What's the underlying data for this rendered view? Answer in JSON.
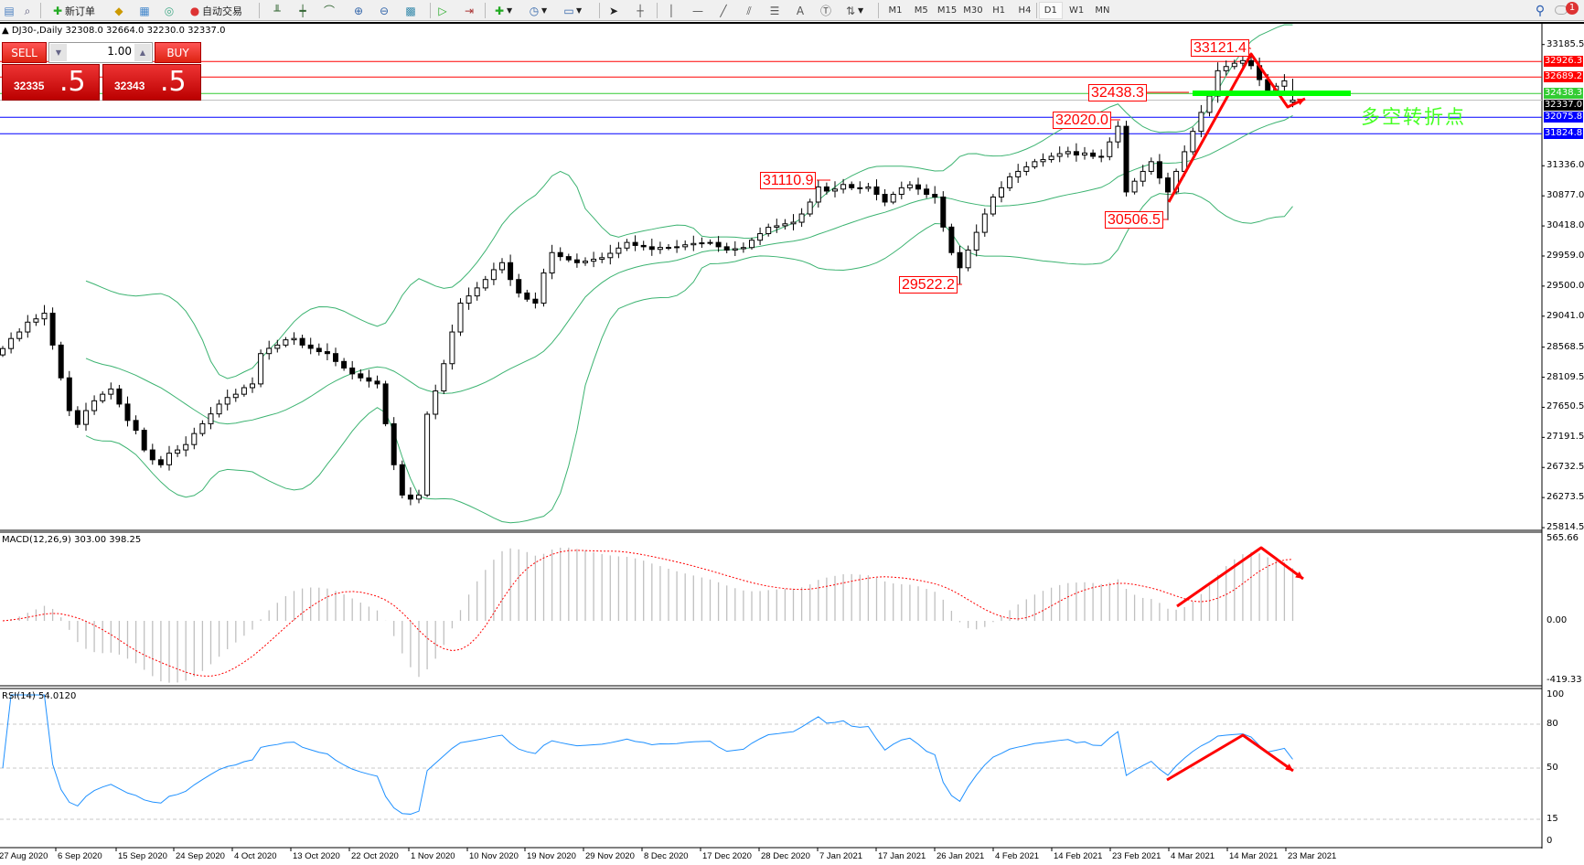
{
  "toolbar": {
    "new_order": "新订单",
    "auto_trading": "自动交易",
    "periods": [
      "M1",
      "M5",
      "M15",
      "M30",
      "H1",
      "H4",
      "D1",
      "W1",
      "MN"
    ],
    "active_period": "D1",
    "notification_count": "1"
  },
  "chart": {
    "title": "DJ30-,Daily  32308.0 32664.0 32230.0 32337.0",
    "symbol": "DJ30-",
    "timeframe": "Daily"
  },
  "trade_panel": {
    "sell_label": "SELL",
    "buy_label": "BUY",
    "lot": "1.00",
    "sell_price_main": "32335",
    "sell_price_big": ".5",
    "buy_price_main": "32343",
    "buy_price_big": ".5"
  },
  "price_axis": [
    "33185.5",
    "31336.0",
    "30877.0",
    "30418.0",
    "29959.0",
    "29500.0",
    "29041.0",
    "28568.5",
    "28109.5",
    "27650.5",
    "27191.5",
    "26732.5",
    "26273.5",
    "25814.5"
  ],
  "price_axis_values": [
    33185.5,
    31336.0,
    30877.0,
    30418.0,
    29959.0,
    29500.0,
    29041.0,
    28568.5,
    28109.5,
    27650.5,
    27191.5,
    26732.5,
    26273.5,
    25814.5
  ],
  "levels": [
    {
      "label": "32926.3",
      "value": 32926.3,
      "color": "#ff0000"
    },
    {
      "label": "32689.2",
      "value": 32689.2,
      "color": "#ff0000"
    },
    {
      "label": "32438.3",
      "value": 32438.3,
      "color": "#33cc33"
    },
    {
      "label": "32337.0",
      "value": 32337.0,
      "color": "#000000",
      "line": "#c0c0c0"
    },
    {
      "label": "32075.8",
      "value": 32075.8,
      "color": "#0000ff"
    },
    {
      "label": "31824.8",
      "value": 31824.8,
      "color": "#0000ff"
    }
  ],
  "annotations": {
    "peak": "33121.4",
    "green_level": "32438.3",
    "high_feb": "32020.0",
    "high_jan": "31110.9",
    "low_mar": "30506.5",
    "low_jan": "29522.2",
    "turning_point": "多空转折点"
  },
  "macd": {
    "label": "MACD(12,26,9) 303.00 398.25",
    "axis": [
      "565.66",
      "0.00",
      "-419.33"
    ],
    "max": 565.66,
    "min": -419.33
  },
  "rsi": {
    "label": "RSI(14) 54.0120",
    "axis": [
      "100",
      "80",
      "50",
      "15",
      "0"
    ],
    "levels": [
      80,
      50,
      15
    ]
  },
  "dates": [
    "27 Aug 2020",
    "6 Sep 2020",
    "15 Sep 2020",
    "24 Sep 2020",
    "4 Oct 2020",
    "13 Oct 2020",
    "22 Oct 2020",
    "1 Nov 2020",
    "10 Nov 2020",
    "19 Nov 2020",
    "29 Nov 2020",
    "8 Dec 2020",
    "17 Dec 2020",
    "28 Dec 2020",
    "7 Jan 2021",
    "17 Jan 2021",
    "26 Jan 2021",
    "4 Feb 2021",
    "14 Feb 2021",
    "23 Feb 2021",
    "4 Mar 2021",
    "14 Mar 2021",
    "23 Mar 2021"
  ],
  "colors": {
    "bands": "#3cb371",
    "macd_hist": "#c0c0c0",
    "macd_signal": "#ff0000",
    "rsi": "#1e90ff",
    "arrow": "#ff0000"
  },
  "chart_data": {
    "type": "candlestick",
    "indicators": [
      "Bollinger Bands",
      "MACD(12,26,9)",
      "RSI(14)"
    ],
    "closes": [
      28547,
      28700,
      28800,
      28950,
      29000,
      29086,
      28600,
      28100,
      27600,
      27390,
      27600,
      27750,
      27850,
      27930,
      27700,
      27450,
      27300,
      27000,
      26850,
      26774,
      26950,
      27000,
      27082,
      27250,
      27400,
      27550,
      27699,
      27800,
      27850,
      27950,
      28007,
      28470,
      28550,
      28600,
      28680,
      28701,
      28600,
      28550,
      28500,
      28470,
      28350,
      28250,
      28161,
      28100,
      28050,
      28007,
      27400,
      26774,
      26312,
      26250,
      26312,
      27545,
      27900,
      28316,
      28800,
      29240,
      29350,
      29472,
      29600,
      29750,
      29857,
      29600,
      29395,
      29300,
      29240,
      29700,
      30011,
      29950,
      29900,
      29857,
      29880,
      29910,
      29934,
      30000,
      30080,
      30166,
      30120,
      30100,
      30060,
      30090,
      30088,
      30100,
      30130,
      30150,
      30160,
      30166,
      30100,
      30050,
      30070,
      30088,
      30200,
      30300,
      30397,
      30420,
      30450,
      30474,
      30600,
      30782,
      31013,
      30950,
      30980,
      31050,
      31000,
      30990,
      31013,
      30900,
      30782,
      30900,
      31000,
      31044,
      30980,
      30900,
      30859,
      30400,
      30011,
      29780,
      30050,
      30320,
      30600,
      30859,
      31000,
      31167,
      31250,
      31320,
      31398,
      31430,
      31480,
      31520,
      31552,
      31500,
      31530,
      31480,
      31475,
      31700,
      31938,
      30936,
      31100,
      31250,
      31398,
      31150,
      30936,
      31250,
      31550,
      31861,
      32150,
      32400,
      32786,
      32850,
      32900,
      32940,
      32863,
      32650,
      32478,
      32550,
      32632,
      32337
    ],
    "last_bar": {
      "open": 32308.0,
      "high": 32664.0,
      "low": 32230.0,
      "close": 32337.0
    }
  }
}
